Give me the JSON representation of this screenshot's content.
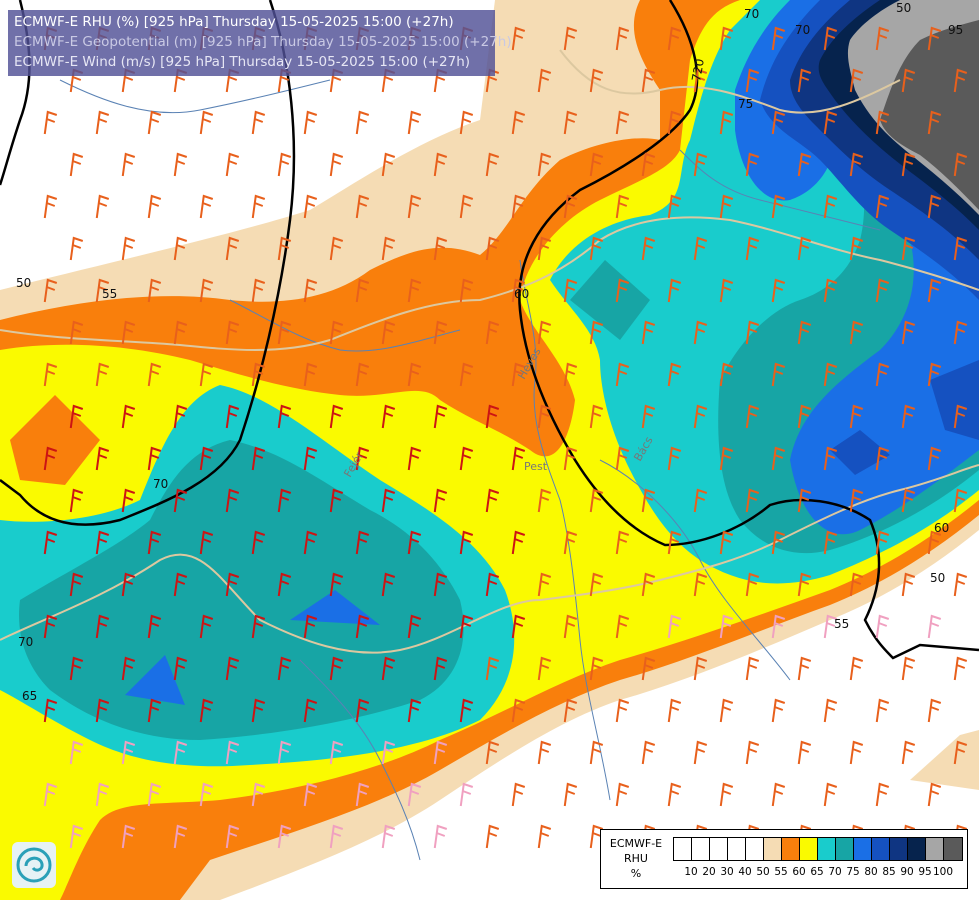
{
  "titles": {
    "rhu": "ECMWF-E RHU (%) [925 hPa] Thursday 15-05-2025 15:00 (+27h)",
    "geopotential": "ECMWF-E Geopotential (m) [925 hPa] Thursday 15-05-2025 15:00 (+27h)",
    "wind": "ECMWF-E Wind (m/s) [925 hPa] Thursday 15-05-2025 15:00 (+27h)"
  },
  "legend": {
    "label_line1": "ECMWF-E",
    "label_line2": "RHU",
    "label_line3": "%",
    "colors": [
      "#ffffff",
      "#ffffff",
      "#ffffff",
      "#ffffff",
      "#ffffff",
      "#f5dcb4",
      "#f97f0c",
      "#fafa00",
      "#19cccc",
      "#17a5a5",
      "#1a6fe6",
      "#1551c0",
      "#0f3582",
      "#06234d",
      "#a6a6a6",
      "#5a5a5a"
    ],
    "ticks": [
      "10",
      "20",
      "30",
      "40",
      "50",
      "55",
      "60",
      "65",
      "70",
      "75",
      "80",
      "85",
      "90",
      "95",
      "100"
    ]
  },
  "contour_labels": {
    "rhu": [
      "50",
      "55",
      "60",
      "70",
      "75",
      "60",
      "50",
      "55",
      "70",
      "65",
      "70",
      "95",
      "50",
      "70"
    ],
    "geopotential": [
      "720"
    ]
  },
  "place_labels": [
    "Pest",
    "Fejér",
    "Bács",
    "Heves"
  ],
  "map_colors": {
    "white": "#ffffff",
    "tan": "#f5dcb4",
    "orange": "#f97f0c",
    "yellow": "#fafa00",
    "cyan": "#19cccc",
    "teal": "#17a5a5",
    "blue": "#1a6fe6",
    "mid_blue": "#1551c0",
    "dark_blue": "#0f3582",
    "navy": "#06234d",
    "grey": "#a6a6a6",
    "dark_grey": "#5a5a5a",
    "barb_red": "#cc1414",
    "barb_orange": "#e8601c",
    "barb_pink": "#f0a0c0",
    "river": "#5a82b4",
    "border": "#dcc8a0"
  }
}
